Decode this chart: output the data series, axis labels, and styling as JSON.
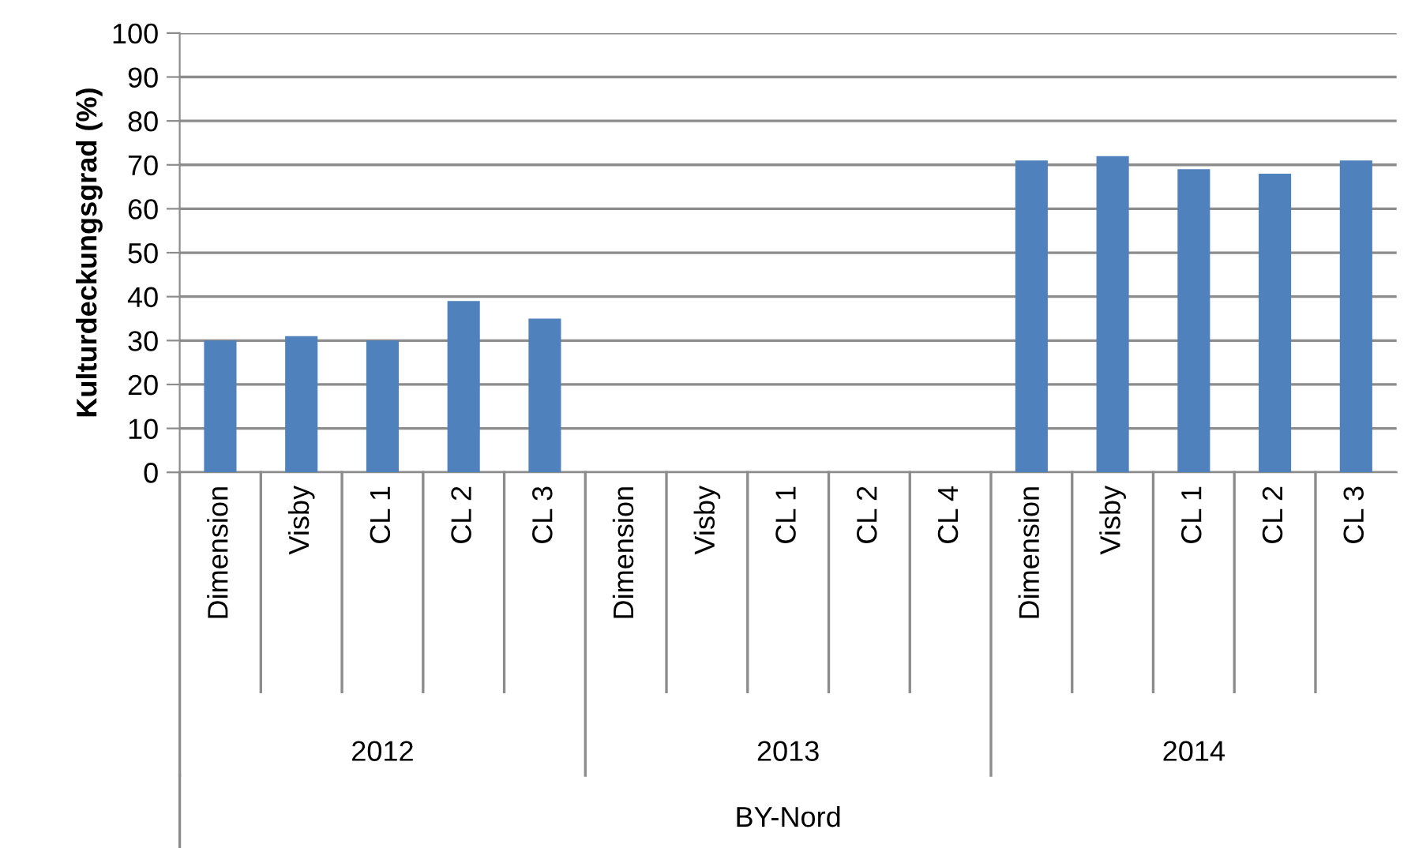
{
  "chart_data": {
    "type": "bar",
    "ylabel": "Kulturdeckungsgrad (%)",
    "categories": [
      "Dimension",
      "Visby",
      "CL 1",
      "CL 2",
      "CL 3",
      "Dimension",
      "Visby",
      "CL 1",
      "CL 2",
      "CL 4",
      "Dimension",
      "Visby",
      "CL 1",
      "CL 2",
      "CL 3"
    ],
    "values": [
      30,
      31,
      30,
      39,
      35,
      null,
      null,
      null,
      null,
      null,
      71,
      72,
      69,
      68,
      71
    ],
    "color": "#4f81bd",
    "ylim": [
      0,
      100
    ],
    "yticks": [
      0,
      10,
      20,
      30,
      40,
      50,
      60,
      70,
      80,
      90,
      100
    ],
    "grid": "y",
    "annotations": [
      "2012",
      "2013",
      "2014",
      "BY-Nord"
    ]
  }
}
